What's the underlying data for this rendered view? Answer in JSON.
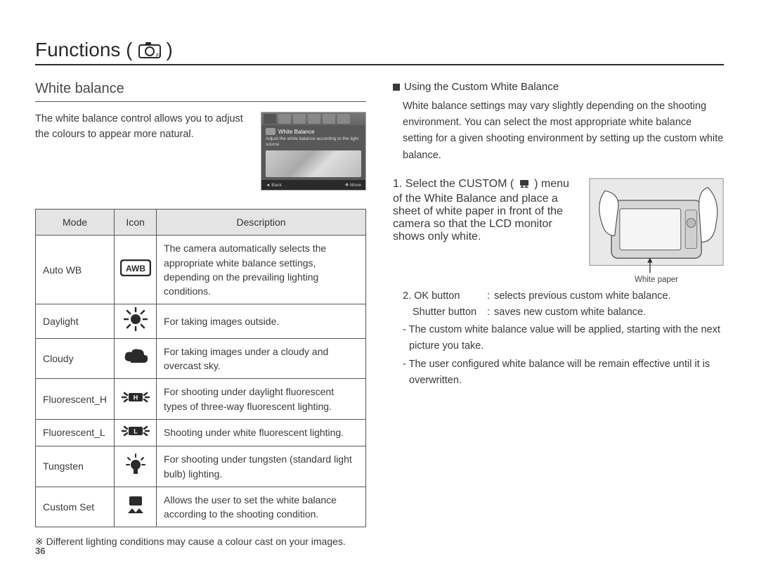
{
  "page": {
    "title_prefix": "Functions (",
    "title_suffix": " )",
    "number": "36"
  },
  "left": {
    "section_title": "White balance",
    "intro": "The white balance control allows you to adjust the colours to appear more natural.",
    "lcd": {
      "label": "White Balance",
      "hint": "Adjust the white balance according to the light source",
      "back": "Back",
      "move": "Move"
    },
    "table": {
      "headers": {
        "mode": "Mode",
        "icon": "Icon",
        "desc": "Description"
      },
      "rows": [
        {
          "mode": "Auto WB",
          "icon": "awb",
          "desc": "The camera automatically selects the appropriate white balance settings, depending on the prevailing lighting conditions."
        },
        {
          "mode": "Daylight",
          "icon": "sun",
          "desc": "For taking images outside."
        },
        {
          "mode": "Cloudy",
          "icon": "cloud",
          "desc": "For taking images under a cloudy and overcast sky."
        },
        {
          "mode": "Fluorescent_H",
          "icon": "fluoH",
          "desc": "For shooting under daylight fluorescent types of three-way fluorescent lighting."
        },
        {
          "mode": "Fluorescent_L",
          "icon": "fluoL",
          "desc": "Shooting under white fluorescent lighting."
        },
        {
          "mode": "Tungsten",
          "icon": "tungsten",
          "desc": "For shooting under tungsten (standard light bulb) lighting."
        },
        {
          "mode": "Custom Set",
          "icon": "custom",
          "desc": "Allows the user to set the white balance according to the shooting condition."
        }
      ]
    },
    "footnote": "※ Different lighting conditions may cause a colour cast on your images."
  },
  "right": {
    "sub_heading": "Using the Custom White Balance",
    "paragraph": "White balance settings may vary slightly depending on the shooting environment. You can select the most appropriate white balance setting for a given shooting environment by setting up the custom white balance.",
    "step1_a": "1. Select the CUSTOM (",
    "step1_b": ") menu of the White Balance and place a sheet of white paper in front of the camera so that the LCD monitor shows only white.",
    "caption": "White paper",
    "step2_label": "2. OK button",
    "step2_value": "selects previous custom white balance.",
    "shutter_label": "Shutter button",
    "shutter_value": "saves new custom white balance.",
    "bullet1": "- The custom white balance value will be applied, starting with the next picture you take.",
    "bullet2": "- The user configured white balance will be remain effective until it is overwritten."
  },
  "style": {
    "text_color": "#3a3a3a",
    "rule_color": "#2a2a2a",
    "table_border": "#555555",
    "header_bg": "#e4e4e4",
    "body_font_size": 14.5,
    "title_font_size": 28
  }
}
